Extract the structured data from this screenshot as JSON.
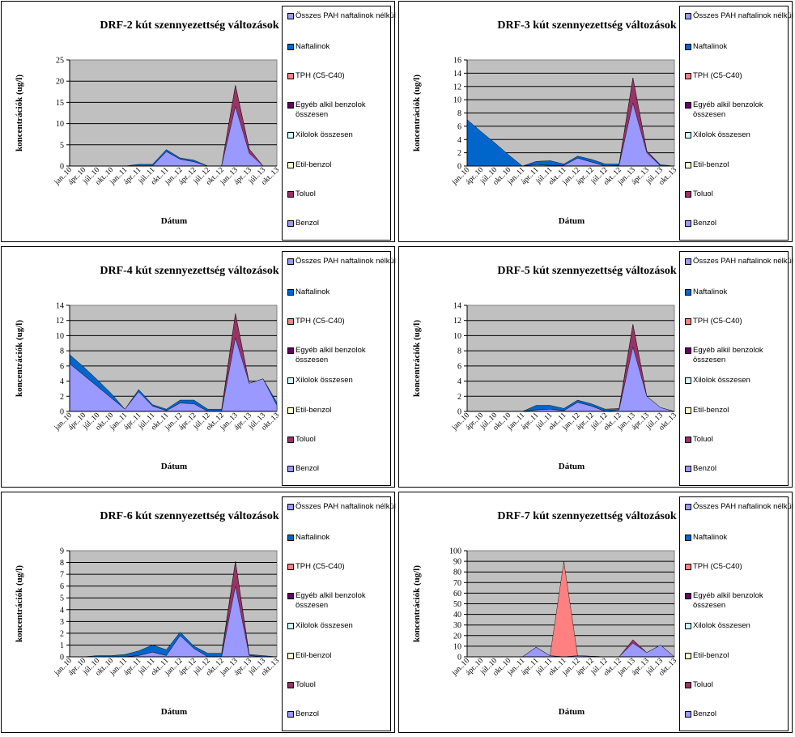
{
  "x_labels": [
    "jan..10",
    "ápr..10",
    "júl..10",
    "okt..10",
    "jan..11",
    "ápr..11",
    "júl..11",
    "okt..11",
    "jan..12",
    "ápr..12",
    "júl..12",
    "okt..12",
    "jan..13",
    "ápr..13",
    "júl..13",
    "okt..13"
  ],
  "series_names": [
    "Összes PAH naftalinok nélkül",
    "Naftalinok",
    "TPH (C5-C40)",
    "Egyéb alkil benzolok összesen",
    "Xilolok összesen",
    "Etil-benzol",
    "Toluol",
    "Benzol"
  ],
  "series_colors": [
    "#9999ff",
    "#0066cc",
    "#ff8080",
    "#660066",
    "#ccffff",
    "#ffffcc",
    "#993366",
    "#9999ff"
  ],
  "chart_data": [
    {
      "type": "area",
      "title": "DRF-2 kút szennyezettség változások",
      "xlabel": "Dátum",
      "ylabel": "koncentrációk (ug/l)",
      "ylim": [
        0,
        25
      ],
      "yticks": [
        0,
        5,
        10,
        15,
        20,
        25
      ],
      "grid": true,
      "legend": "right",
      "series": [
        {
          "name": "Benzol",
          "values": [
            0,
            0,
            0,
            0,
            0,
            0,
            0,
            3.4,
            1.6,
            1.0,
            0,
            0,
            14.0,
            3.0,
            0,
            0
          ]
        },
        {
          "name": "Toluol",
          "values": [
            0,
            0,
            0,
            0,
            0,
            0,
            0,
            0,
            0,
            0,
            0,
            0,
            5.0,
            1.0,
            0,
            0
          ]
        },
        {
          "name": "Naftalinok",
          "values": [
            0,
            0,
            0,
            0,
            0,
            0.4,
            0.4,
            0.5,
            0.3,
            0.4,
            0,
            0,
            0,
            0,
            0,
            0
          ]
        }
      ]
    },
    {
      "type": "area",
      "title": "DRF-3 kút szennyezettség változások",
      "xlabel": "Dátum",
      "ylabel": "koncentrációk (ug/l)",
      "ylim": [
        0,
        16
      ],
      "yticks": [
        0,
        2,
        4,
        6,
        8,
        10,
        12,
        14,
        16
      ],
      "grid": true,
      "legend": "right",
      "series": [
        {
          "name": "Benzol",
          "values": [
            0,
            0,
            0,
            0,
            0,
            0.2,
            0.1,
            0.1,
            1.2,
            0.6,
            0,
            0.1,
            9.5,
            2.0,
            0,
            0
          ]
        },
        {
          "name": "Toluol",
          "values": [
            0,
            0,
            0,
            0,
            0,
            0,
            0,
            0,
            0,
            0,
            0,
            0,
            3.8,
            0.3,
            0,
            0
          ]
        },
        {
          "name": "Naftalinok",
          "values": [
            7.0,
            5.2,
            3.5,
            1.7,
            0,
            0.5,
            0.7,
            0.2,
            0.3,
            0.4,
            0.3,
            0.2,
            0,
            0,
            0.2,
            0
          ]
        }
      ]
    },
    {
      "type": "area",
      "title": "DRF-4 kút szennyezettség változások",
      "xlabel": "Dátum",
      "ylabel": "koncentrációk (ug/l)",
      "ylim": [
        0,
        14
      ],
      "yticks": [
        0,
        2,
        4,
        6,
        8,
        10,
        12,
        14
      ],
      "grid": true,
      "legend": "right",
      "series": [
        {
          "name": "Benzol",
          "values": [
            6.3,
            4.8,
            3.3,
            1.8,
            0.3,
            2.6,
            0.7,
            0.1,
            1.1,
            1.0,
            0,
            0,
            9.7,
            3.7,
            4.3,
            0.8
          ]
        },
        {
          "name": "Toluol",
          "values": [
            0,
            0,
            0,
            0,
            0,
            0,
            0,
            0,
            0,
            0,
            0,
            0,
            3.2,
            0,
            0,
            0
          ]
        },
        {
          "name": "Naftalinok",
          "values": [
            1.2,
            1.1,
            0.9,
            0.6,
            0,
            0.3,
            0.2,
            0.2,
            0.4,
            0.5,
            0.3,
            0.3,
            0,
            0,
            0,
            0.4
          ]
        }
      ]
    },
    {
      "type": "area",
      "title": "DRF-5 kút szennyezettség változások",
      "xlabel": "Dátum",
      "ylabel": "koncentrációk (ug/l)",
      "ylim": [
        0,
        14
      ],
      "yticks": [
        0,
        2,
        4,
        6,
        8,
        10,
        12,
        14
      ],
      "grid": true,
      "legend": "right",
      "series": [
        {
          "name": "Benzol",
          "values": [
            0,
            0,
            0,
            0,
            0,
            0.2,
            0.3,
            0.1,
            1.2,
            0.7,
            0,
            0.2,
            8.5,
            2.0,
            0.5,
            0
          ]
        },
        {
          "name": "Toluol",
          "values": [
            0,
            0,
            0,
            0,
            0,
            0,
            0,
            0,
            0,
            0,
            0,
            0,
            3.0,
            0,
            0,
            0
          ]
        },
        {
          "name": "Naftalinok",
          "values": [
            0,
            0,
            0,
            0,
            0,
            0.6,
            0.5,
            0.3,
            0.3,
            0.3,
            0.3,
            0.2,
            0,
            0,
            0,
            0
          ]
        }
      ]
    },
    {
      "type": "area",
      "title": "DRF-6 kút szennyezettség változások",
      "xlabel": "Dátum",
      "ylabel": "koncentrációk (ug/l)",
      "ylim": [
        0,
        9
      ],
      "yticks": [
        0,
        1,
        2,
        3,
        4,
        5,
        6,
        7,
        8,
        9
      ],
      "grid": true,
      "legend": "right",
      "series": [
        {
          "name": "Benzol",
          "values": [
            0,
            0,
            0,
            0,
            0,
            0.1,
            0.4,
            0.1,
            1.8,
            0.7,
            0,
            0,
            6.0,
            0.1,
            0,
            0
          ]
        },
        {
          "name": "Toluol",
          "values": [
            0,
            0,
            0,
            0,
            0,
            0,
            0,
            0,
            0,
            0,
            0,
            0,
            2.1,
            0,
            0,
            0
          ]
        },
        {
          "name": "Naftalinok",
          "values": [
            0,
            0,
            0.1,
            0.1,
            0.2,
            0.4,
            0.6,
            0.5,
            0.3,
            0.2,
            0.3,
            0.3,
            0,
            0.1,
            0.1,
            0
          ]
        }
      ]
    },
    {
      "type": "area",
      "title": "DRF-7 kút szennyezettség változások",
      "xlabel": "Dátum",
      "ylabel": "koncentrációk (ug/l)",
      "ylim": [
        0,
        100
      ],
      "yticks": [
        0,
        10,
        20,
        30,
        40,
        50,
        60,
        70,
        80,
        90,
        100
      ],
      "grid": true,
      "legend": "right",
      "series": [
        {
          "name": "Benzol",
          "values": [
            0,
            0,
            0,
            0,
            0,
            9,
            1,
            0,
            1,
            0.5,
            0,
            0,
            13,
            4,
            11,
            0
          ]
        },
        {
          "name": "Toluol",
          "values": [
            0,
            0,
            0,
            0,
            0,
            0,
            0,
            0,
            0,
            0,
            0,
            0,
            3,
            0,
            0,
            0
          ]
        },
        {
          "name": "TPH (C5-C40)",
          "values": [
            0,
            0,
            0,
            0,
            0,
            0,
            0,
            90,
            0,
            0,
            0,
            0,
            0,
            0,
            0,
            0
          ]
        }
      ]
    }
  ]
}
